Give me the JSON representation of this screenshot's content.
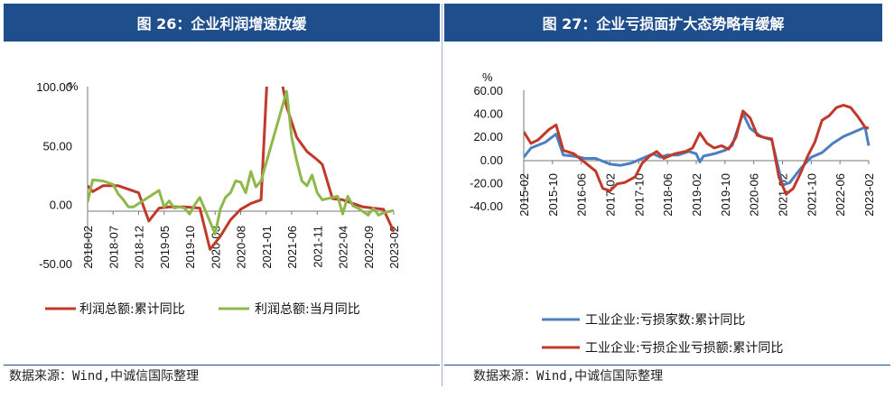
{
  "left": {
    "title": "图 26：企业利润增速放缓",
    "source": "数据来源：Wind,中诚信国际整理",
    "unit": "%"
  },
  "right": {
    "title": "图 27：企业亏损面扩大态势略有缓解",
    "source": "数据来源：Wind,中诚信国际整理",
    "unit": "%"
  },
  "colors": {
    "red": "#c0392b",
    "green": "#8fb84a",
    "blue": "#4a7fc1",
    "title_bg": "#1f4e8c"
  },
  "chart_data": [
    {
      "type": "line",
      "ylim": [
        -50,
        100
      ],
      "yticks": [
        "100.00",
        "50.00",
        "0.00",
        "-50.00"
      ],
      "ytick_values": [
        100,
        50,
        0,
        -50
      ],
      "xticks": [
        "2018-02",
        "2018-07",
        "2018-12",
        "2019-05",
        "2019-10",
        "2020-03",
        "2020-08",
        "2021-01",
        "2021-06",
        "2021-11",
        "2022-04",
        "2022-09",
        "2023-02"
      ],
      "x_start": "2018-02",
      "series": [
        {
          "name": "利润总额:累计同比",
          "color": "#c0392b",
          "points": [
            [
              "2018-02",
              16
            ],
            [
              "2018-03",
              11
            ],
            [
              "2018-05",
              16
            ],
            [
              "2018-08",
              16
            ],
            [
              "2018-12",
              10
            ],
            [
              "2019-02",
              -14
            ],
            [
              "2019-04",
              -3
            ],
            [
              "2019-06",
              -2
            ],
            [
              "2019-09",
              -2
            ],
            [
              "2019-12",
              -3
            ],
            [
              "2020-02",
              -38
            ],
            [
              "2020-04",
              -27
            ],
            [
              "2020-06",
              -13
            ],
            [
              "2020-08",
              -4
            ],
            [
              "2020-10",
              1
            ],
            [
              "2020-12",
              4
            ],
            [
              "2021-02",
              178
            ],
            [
              "2021-04",
              106
            ],
            [
              "2021-05",
              83
            ],
            [
              "2021-07",
              57
            ],
            [
              "2021-09",
              45
            ],
            [
              "2021-11",
              38
            ],
            [
              "2021-12",
              34
            ],
            [
              "2022-02",
              5
            ],
            [
              "2022-04",
              4
            ],
            [
              "2022-06",
              1
            ],
            [
              "2022-08",
              -2
            ],
            [
              "2022-10",
              -3
            ],
            [
              "2022-12",
              -4
            ],
            [
              "2023-02",
              -23
            ]
          ]
        },
        {
          "name": "利润总额:当月同比",
          "color": "#8fb84a",
          "points": [
            [
              "2018-02",
              2
            ],
            [
              "2018-03",
              21
            ],
            [
              "2018-05",
              20
            ],
            [
              "2018-07",
              17
            ],
            [
              "2018-08",
              9
            ],
            [
              "2018-09",
              4
            ],
            [
              "2018-10",
              -2
            ],
            [
              "2018-11",
              -2
            ],
            [
              "2019-04",
              12
            ],
            [
              "2019-05",
              -2
            ],
            [
              "2019-06",
              3
            ],
            [
              "2019-07",
              -3
            ],
            [
              "2019-08",
              -2
            ],
            [
              "2019-09",
              -3
            ],
            [
              "2019-10",
              -8
            ],
            [
              "2019-11",
              0
            ],
            [
              "2019-12",
              6
            ],
            [
              "2020-03",
              -25
            ],
            [
              "2020-04",
              -4
            ],
            [
              "2020-05",
              6
            ],
            [
              "2020-06",
              10
            ],
            [
              "2020-07",
              20
            ],
            [
              "2020-08",
              19
            ],
            [
              "2020-09",
              10
            ],
            [
              "2020-10",
              28
            ],
            [
              "2020-11",
              15
            ],
            [
              "2020-12",
              20
            ],
            [
              "2021-05",
              96
            ],
            [
              "2021-06",
              57
            ],
            [
              "2021-07",
              37
            ],
            [
              "2021-08",
              20
            ],
            [
              "2021-09",
              16
            ],
            [
              "2021-10",
              25
            ],
            [
              "2021-11",
              10
            ],
            [
              "2021-12",
              4
            ],
            [
              "2022-03",
              7
            ],
            [
              "2022-04",
              -8
            ],
            [
              "2022-05",
              7
            ],
            [
              "2022-06",
              -1
            ],
            [
              "2022-07",
              -3
            ],
            [
              "2022-08",
              -6
            ],
            [
              "2022-09",
              -9
            ],
            [
              "2022-10",
              -3
            ],
            [
              "2022-11",
              -9
            ],
            [
              "2022-12",
              -7
            ],
            [
              "2023-02",
              -5
            ]
          ]
        }
      ]
    },
    {
      "type": "line",
      "ylim": [
        -40,
        60
      ],
      "yticks": [
        "60.00",
        "40.00",
        "20.00",
        "0.00",
        "-20.00",
        "-40.00"
      ],
      "ytick_values": [
        60,
        40,
        20,
        0,
        -20,
        -40
      ],
      "xticks": [
        "2015-02",
        "2015-10",
        "2016-06",
        "2017-02",
        "2017-10",
        "2018-06",
        "2019-02",
        "2019-10",
        "2020-06",
        "2021-02",
        "2021-10",
        "2022-06",
        "2023-02"
      ],
      "x_start": "2015-02",
      "series": [
        {
          "name": "工业企业:亏损家数:累计同比",
          "color": "#4a7fc1",
          "points": [
            [
              "2015-02",
              2
            ],
            [
              "2015-04",
              10
            ],
            [
              "2015-08",
              15
            ],
            [
              "2015-11",
              22
            ],
            [
              "2016-01",
              4
            ],
            [
              "2016-04",
              3
            ],
            [
              "2016-07",
              1
            ],
            [
              "2016-10",
              1
            ],
            [
              "2017-02",
              -4
            ],
            [
              "2017-05",
              -5
            ],
            [
              "2017-08",
              -3
            ],
            [
              "2017-11",
              1
            ],
            [
              "2018-02",
              5
            ],
            [
              "2018-04",
              2
            ],
            [
              "2018-06",
              4
            ],
            [
              "2018-09",
              4
            ],
            [
              "2018-12",
              7
            ],
            [
              "2019-02",
              5
            ],
            [
              "2019-03",
              -2
            ],
            [
              "2019-04",
              3
            ],
            [
              "2019-07",
              5
            ],
            [
              "2019-10",
              8
            ],
            [
              "2019-12",
              12
            ],
            [
              "2020-03",
              40
            ],
            [
              "2020-05",
              27
            ],
            [
              "2020-08",
              20
            ],
            [
              "2020-11",
              17
            ],
            [
              "2021-02",
              -22
            ],
            [
              "2021-04",
              -20
            ],
            [
              "2021-07",
              -8
            ],
            [
              "2021-10",
              2
            ],
            [
              "2022-01",
              6
            ],
            [
              "2022-04",
              14
            ],
            [
              "2022-07",
              20
            ],
            [
              "2022-10",
              24
            ],
            [
              "2023-01",
              28
            ],
            [
              "2023-02",
              12
            ]
          ]
        },
        {
          "name": "工业企业:亏损企业亏损额:累计同比",
          "color": "#c0392b",
          "points": [
            [
              "2015-02",
              24
            ],
            [
              "2015-04",
              14
            ],
            [
              "2015-06",
              17
            ],
            [
              "2015-09",
              26
            ],
            [
              "2015-11",
              30
            ],
            [
              "2016-01",
              8
            ],
            [
              "2016-04",
              5
            ],
            [
              "2016-06",
              0
            ],
            [
              "2016-08",
              -5
            ],
            [
              "2016-10",
              -10
            ],
            [
              "2016-12",
              -25
            ],
            [
              "2017-02",
              -27
            ],
            [
              "2017-04",
              -21
            ],
            [
              "2017-06",
              -20
            ],
            [
              "2017-09",
              -15
            ],
            [
              "2017-11",
              -3
            ],
            [
              "2018-01",
              3
            ],
            [
              "2018-03",
              7
            ],
            [
              "2018-05",
              1
            ],
            [
              "2018-08",
              5
            ],
            [
              "2018-11",
              7
            ],
            [
              "2019-01",
              10
            ],
            [
              "2019-03",
              23
            ],
            [
              "2019-05",
              14
            ],
            [
              "2019-07",
              10
            ],
            [
              "2019-09",
              12
            ],
            [
              "2019-11",
              9
            ],
            [
              "2020-01",
              19
            ],
            [
              "2020-03",
              42
            ],
            [
              "2020-05",
              36
            ],
            [
              "2020-07",
              21
            ],
            [
              "2020-09",
              19
            ],
            [
              "2020-11",
              18
            ],
            [
              "2021-01",
              -15
            ],
            [
              "2021-03",
              -30
            ],
            [
              "2021-05",
              -25
            ],
            [
              "2021-07",
              -12
            ],
            [
              "2021-09",
              3
            ],
            [
              "2021-11",
              15
            ],
            [
              "2022-01",
              34
            ],
            [
              "2022-03",
              38
            ],
            [
              "2022-05",
              45
            ],
            [
              "2022-07",
              47
            ],
            [
              "2022-09",
              45
            ],
            [
              "2022-11",
              37
            ],
            [
              "2023-01",
              28
            ],
            [
              "2023-02",
              27
            ]
          ]
        }
      ]
    }
  ]
}
